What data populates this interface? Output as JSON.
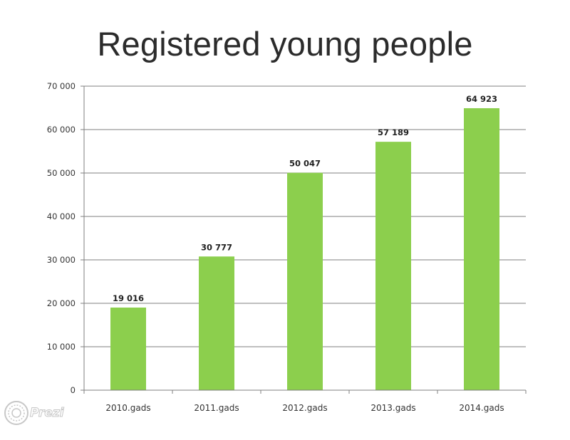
{
  "title": "Registered young people",
  "watermark": {
    "text": "Prezi",
    "icon": "prezi-logo-icon"
  },
  "colors": {
    "bar": "#8ccf4d",
    "grid": "#7f7f7f",
    "axis": "#7f7f7f"
  },
  "chart_data": {
    "type": "bar",
    "title": "",
    "xlabel": "",
    "ylabel": "",
    "categories": [
      "2010.gads",
      "2011.gads",
      "2012.gads",
      "2013.gads",
      "2014.gads"
    ],
    "values": [
      19016,
      30777,
      50047,
      57189,
      64923
    ],
    "data_labels": [
      "19 016",
      "30 777",
      "50 047",
      "57 189",
      "64 923"
    ],
    "ylim": [
      0,
      70000
    ],
    "yticks": [
      0,
      10000,
      20000,
      30000,
      40000,
      50000,
      60000,
      70000
    ],
    "ytick_labels": [
      "0",
      "10 000",
      "20 000",
      "30 000",
      "40 000",
      "50 000",
      "60 000",
      "70 000"
    ],
    "grid": true,
    "legend": "none"
  }
}
